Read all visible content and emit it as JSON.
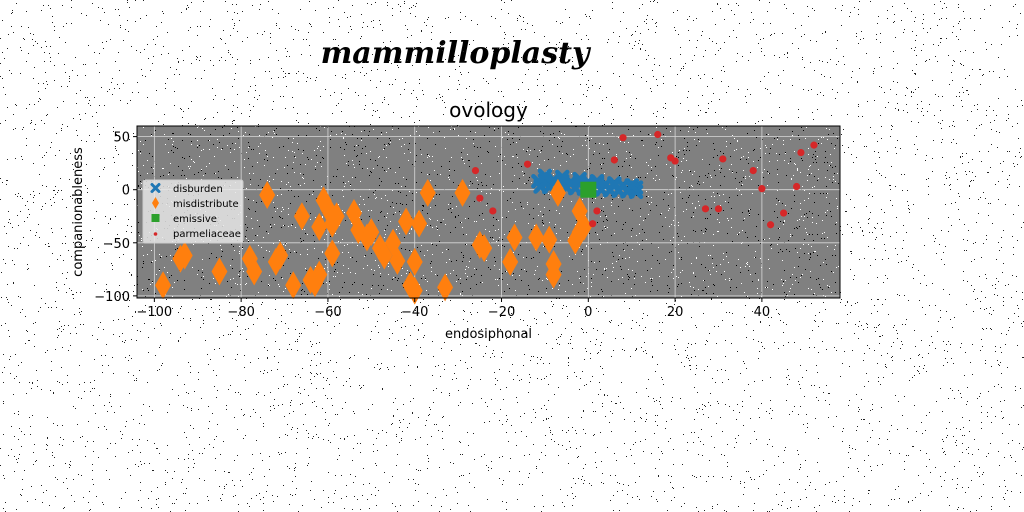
{
  "figure": {
    "suptitle": "mammilloplasty"
  },
  "chart_data": {
    "type": "scatter",
    "title": "ovology",
    "xlabel": "endosiphonal",
    "ylabel": "companionableness",
    "xlim": [
      -104,
      58
    ],
    "ylim": [
      -102,
      60
    ],
    "xticks": [
      -100,
      -80,
      -60,
      -40,
      -20,
      0,
      20,
      40
    ],
    "yticks": [
      50,
      0,
      -50,
      -100
    ],
    "grid": true,
    "legend_position": "center-left",
    "colors": {
      "axes_background": "#808080",
      "disburden": "#1f77b4",
      "misdistribute": "#ff7f0e",
      "emissive": "#2ca02c",
      "parmeliaceae": "#d62728"
    },
    "series": [
      {
        "name": "disburden",
        "marker": "x",
        "x": [
          -11.5,
          -10,
          -8,
          -6,
          -4,
          -2,
          0,
          2,
          4,
          6,
          8,
          10,
          11,
          -11,
          -9,
          -7,
          -5,
          -3,
          -1,
          1,
          3,
          5,
          7,
          9,
          11,
          -10,
          -6,
          -2,
          2,
          6,
          10
        ],
        "y": [
          8,
          8.5,
          9,
          8,
          7,
          6.5,
          7,
          6,
          5,
          4.5,
          4,
          3,
          2,
          3,
          2.5,
          3,
          2,
          1.5,
          1,
          0.5,
          0,
          -0.5,
          -1,
          -1.5,
          -2,
          13,
          12,
          10,
          8,
          6,
          4
        ]
      },
      {
        "name": "misdistribute",
        "marker": "d",
        "x": [
          -98,
          -94,
          -93,
          -85,
          -78,
          -77,
          -74,
          -72,
          -71,
          -68,
          -66,
          -64,
          -63,
          -62,
          -62,
          -61,
          -60,
          -59,
          -59,
          -58,
          -54,
          -53,
          -51,
          -50,
          -48,
          -47,
          -45,
          -44,
          -42,
          -41,
          -40,
          -40,
          -39,
          -37,
          -33,
          -29,
          -25,
          -24,
          -18,
          -17,
          -12,
          -9,
          -8,
          -8,
          -7,
          -3,
          -2,
          -2,
          -1
        ],
        "y": [
          -90,
          -65,
          -62,
          -77,
          -65,
          -77,
          -5,
          -68,
          -62,
          -90,
          -25,
          -85,
          -88,
          -80,
          -35,
          -10,
          -18,
          -32,
          -60,
          -25,
          -22,
          -38,
          -45,
          -40,
          -55,
          -62,
          -50,
          -67,
          -30,
          -90,
          -68,
          -95,
          -32,
          -3,
          -92,
          -3,
          -52,
          -55,
          -68,
          -45,
          -45,
          -47,
          -70,
          -80,
          -3,
          -48,
          -20,
          -40,
          -35
        ]
      },
      {
        "name": "emissive",
        "marker": "s",
        "x": [
          0
        ],
        "y": [
          0
        ]
      },
      {
        "name": "parmeliaceae",
        "marker": "o",
        "x": [
          -14,
          -26,
          -25,
          -22,
          2,
          1,
          6,
          8,
          16,
          19,
          20,
          27,
          30,
          31,
          38,
          40,
          42,
          45,
          48,
          49,
          52
        ],
        "y": [
          24,
          18,
          -8,
          -20,
          -20,
          -32,
          28,
          49,
          52,
          30,
          27,
          -18,
          -18,
          29,
          18,
          1,
          -33,
          -22,
          3,
          35,
          42
        ]
      }
    ]
  }
}
